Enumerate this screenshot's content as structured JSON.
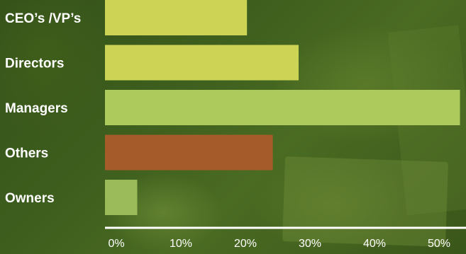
{
  "chart_data": {
    "type": "bar",
    "orientation": "horizontal",
    "categories": [
      "CEO’s /VP’s",
      "Directors",
      "Managers",
      "Others",
      "Owners"
    ],
    "values": [
      22,
      30,
      55,
      26,
      5
    ],
    "bar_colors": [
      "#cdd455",
      "#cdd455",
      "#adcb5c",
      "#a55c2a",
      "#9bbb5a"
    ],
    "xticks": [
      "0%",
      "10%",
      "20%",
      "30%",
      "40%",
      "50%"
    ],
    "xlim": [
      0,
      55
    ],
    "title": "",
    "xlabel": "",
    "ylabel": "",
    "grid": false,
    "legend": "none"
  }
}
